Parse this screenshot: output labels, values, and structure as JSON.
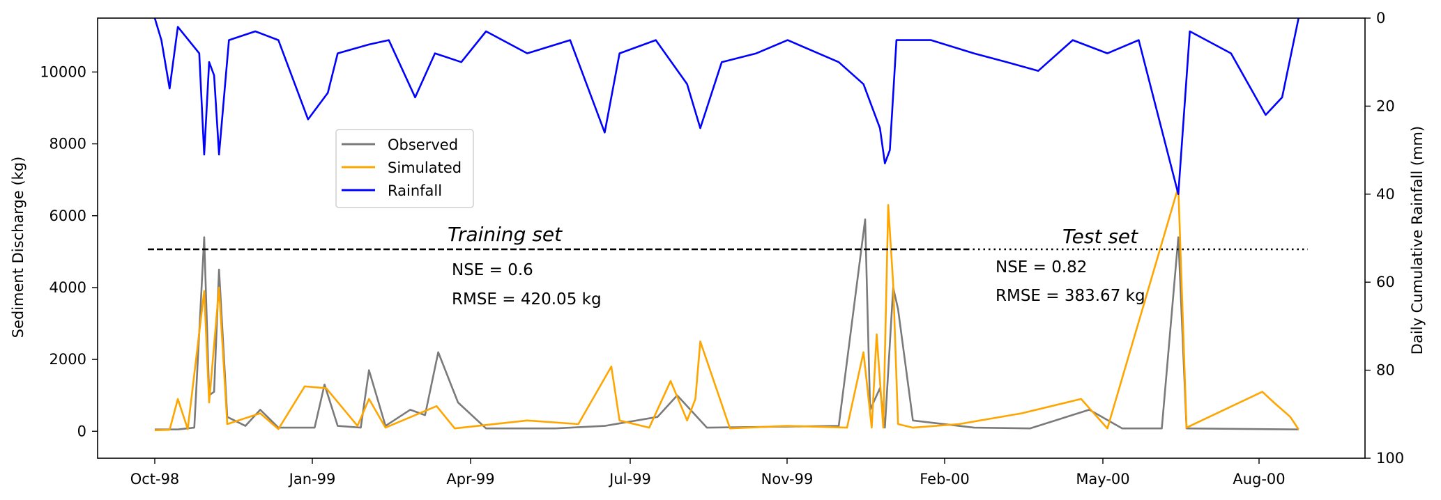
{
  "chart_data": {
    "type": "line",
    "x_ticks": [
      "Oct-98",
      "Jan-99",
      "Apr-99",
      "Jul-99",
      "Nov-99",
      "Feb-00",
      "May-00",
      "Aug-00"
    ],
    "y_left": {
      "label": "Sediment Discharge (kg)",
      "ticks": [
        "0",
        "2000",
        "4000",
        "6000",
        "8000",
        "10000"
      ],
      "range": [
        -750,
        11500
      ]
    },
    "y_right": {
      "label": "Daily Cumulative Rainfall (mm)",
      "ticks": [
        "0",
        "20",
        "40",
        "60",
        "80",
        "100"
      ],
      "range": [
        0,
        100
      ],
      "inverted": true
    },
    "series": [
      {
        "name": "Observed",
        "color": "#7a7a7a",
        "axis": "left",
        "points": [
          [
            "1998-10-01",
            50
          ],
          [
            "1998-10-15",
            50
          ],
          [
            "1998-10-25",
            100
          ],
          [
            "1998-10-31",
            5400
          ],
          [
            "1998-11-03",
            1000
          ],
          [
            "1998-11-06",
            1100
          ],
          [
            "1998-11-09",
            4500
          ],
          [
            "1998-11-14",
            400
          ],
          [
            "1998-11-25",
            150
          ],
          [
            "1998-12-04",
            600
          ],
          [
            "1998-12-15",
            100
          ],
          [
            "1999-01-06",
            100
          ],
          [
            "1999-01-12",
            1300
          ],
          [
            "1999-01-20",
            150
          ],
          [
            "1999-02-03",
            100
          ],
          [
            "1999-02-08",
            1700
          ],
          [
            "1999-02-18",
            150
          ],
          [
            "1999-03-05",
            600
          ],
          [
            "1999-03-14",
            450
          ],
          [
            "1999-03-22",
            2200
          ],
          [
            "1999-04-03",
            800
          ],
          [
            "1999-04-20",
            80
          ],
          [
            "1999-06-01",
            80
          ],
          [
            "1999-07-01",
            150
          ],
          [
            "1999-08-02",
            400
          ],
          [
            "1999-08-14",
            1000
          ],
          [
            "1999-09-01",
            100
          ],
          [
            "1999-11-20",
            150
          ],
          [
            "1999-12-06",
            5900
          ],
          [
            "1999-12-09",
            600
          ],
          [
            "1999-12-15",
            1200
          ],
          [
            "1999-12-18",
            100
          ],
          [
            "1999-12-23",
            4000
          ],
          [
            "1999-12-26",
            3400
          ],
          [
            "2000-01-04",
            300
          ],
          [
            "2000-02-10",
            100
          ],
          [
            "2000-03-15",
            80
          ],
          [
            "2000-04-20",
            600
          ],
          [
            "2000-05-10",
            80
          ],
          [
            "2000-06-03",
            80
          ],
          [
            "2000-06-13",
            5400
          ],
          [
            "2000-06-18",
            80
          ],
          [
            "2000-08-25",
            50
          ]
        ]
      },
      {
        "name": "Simulated",
        "color": "#ffa500",
        "axis": "left",
        "points": [
          [
            "1998-10-01",
            30
          ],
          [
            "1998-10-10",
            40
          ],
          [
            "1998-10-15",
            900
          ],
          [
            "1998-10-21",
            60
          ],
          [
            "1998-10-31",
            3900
          ],
          [
            "1998-11-03",
            800
          ],
          [
            "1998-11-09",
            4000
          ],
          [
            "1998-11-14",
            200
          ],
          [
            "1998-12-04",
            500
          ],
          [
            "1998-12-15",
            60
          ],
          [
            "1998-12-31",
            1250
          ],
          [
            "1999-01-13",
            1200
          ],
          [
            "1999-02-01",
            150
          ],
          [
            "1999-02-08",
            900
          ],
          [
            "1999-02-18",
            100
          ],
          [
            "1999-03-21",
            700
          ],
          [
            "1999-04-01",
            80
          ],
          [
            "1999-05-15",
            300
          ],
          [
            "1999-06-15",
            200
          ],
          [
            "1999-07-05",
            1800
          ],
          [
            "1999-07-10",
            300
          ],
          [
            "1999-07-28",
            100
          ],
          [
            "1999-08-10",
            1400
          ],
          [
            "1999-08-20",
            300
          ],
          [
            "1999-08-25",
            900
          ],
          [
            "1999-08-28",
            2500
          ],
          [
            "1999-09-15",
            80
          ],
          [
            "1999-10-20",
            150
          ],
          [
            "1999-11-25",
            100
          ],
          [
            "1999-12-05",
            2200
          ],
          [
            "1999-12-10",
            100
          ],
          [
            "1999-12-13",
            2700
          ],
          [
            "1999-12-17",
            100
          ],
          [
            "1999-12-20",
            6300
          ],
          [
            "1999-12-23",
            4100
          ],
          [
            "1999-12-26",
            200
          ],
          [
            "2000-01-04",
            100
          ],
          [
            "2000-02-01",
            200
          ],
          [
            "2000-03-10",
            500
          ],
          [
            "2000-04-15",
            900
          ],
          [
            "2000-05-01",
            80
          ],
          [
            "2000-06-13",
            6800
          ],
          [
            "2000-06-18",
            100
          ],
          [
            "2000-08-03",
            1100
          ],
          [
            "2000-08-10",
            800
          ],
          [
            "2000-08-20",
            400
          ],
          [
            "2000-08-25",
            50
          ]
        ]
      },
      {
        "name": "Rainfall",
        "color": "#0000ff",
        "axis": "right",
        "points": [
          [
            "1998-10-01",
            0
          ],
          [
            "1998-10-05",
            5
          ],
          [
            "1998-10-10",
            16
          ],
          [
            "1998-10-15",
            2
          ],
          [
            "1998-10-28",
            8
          ],
          [
            "1998-10-31",
            31
          ],
          [
            "1998-11-03",
            10
          ],
          [
            "1998-11-06",
            13
          ],
          [
            "1998-11-09",
            31
          ],
          [
            "1998-11-15",
            5
          ],
          [
            "1998-12-01",
            3
          ],
          [
            "1998-12-15",
            5
          ],
          [
            "1999-01-02",
            23
          ],
          [
            "1999-01-14",
            17
          ],
          [
            "1999-01-20",
            8
          ],
          [
            "1999-02-08",
            6
          ],
          [
            "1999-02-20",
            5
          ],
          [
            "1999-03-08",
            18
          ],
          [
            "1999-03-20",
            8
          ],
          [
            "1999-04-05",
            10
          ],
          [
            "1999-04-20",
            3
          ],
          [
            "1999-05-15",
            8
          ],
          [
            "1999-06-10",
            5
          ],
          [
            "1999-07-01",
            26
          ],
          [
            "1999-07-10",
            8
          ],
          [
            "1999-08-01",
            5
          ],
          [
            "1999-08-20",
            15
          ],
          [
            "1999-08-28",
            25
          ],
          [
            "1999-09-10",
            10
          ],
          [
            "1999-10-01",
            8
          ],
          [
            "1999-10-20",
            5
          ],
          [
            "1999-11-20",
            10
          ],
          [
            "1999-12-05",
            15
          ],
          [
            "1999-12-10",
            20
          ],
          [
            "1999-12-15",
            25
          ],
          [
            "1999-12-18",
            33
          ],
          [
            "1999-12-21",
            30
          ],
          [
            "1999-12-25",
            5
          ],
          [
            "2000-01-15",
            5
          ],
          [
            "2000-02-10",
            8
          ],
          [
            "2000-03-01",
            10
          ],
          [
            "2000-03-20",
            12
          ],
          [
            "2000-04-10",
            5
          ],
          [
            "2000-05-01",
            8
          ],
          [
            "2000-05-20",
            5
          ],
          [
            "2000-06-13",
            40
          ],
          [
            "2000-06-20",
            3
          ],
          [
            "2000-07-15",
            8
          ],
          [
            "2000-08-05",
            22
          ],
          [
            "2000-08-15",
            18
          ],
          [
            "2000-08-25",
            0
          ]
        ]
      }
    ],
    "legend": {
      "position": "upper-left",
      "entries": [
        "Observed",
        "Simulated",
        "Rainfall"
      ]
    },
    "annotations": {
      "training_label": "Training set",
      "test_label": "Test set",
      "train_nse": "NSE = 0.6",
      "train_rmse": "RMSE = 420.05 kg",
      "test_nse": "NSE = 0.82",
      "test_rmse": "RMSE = 383.67 kg"
    }
  }
}
